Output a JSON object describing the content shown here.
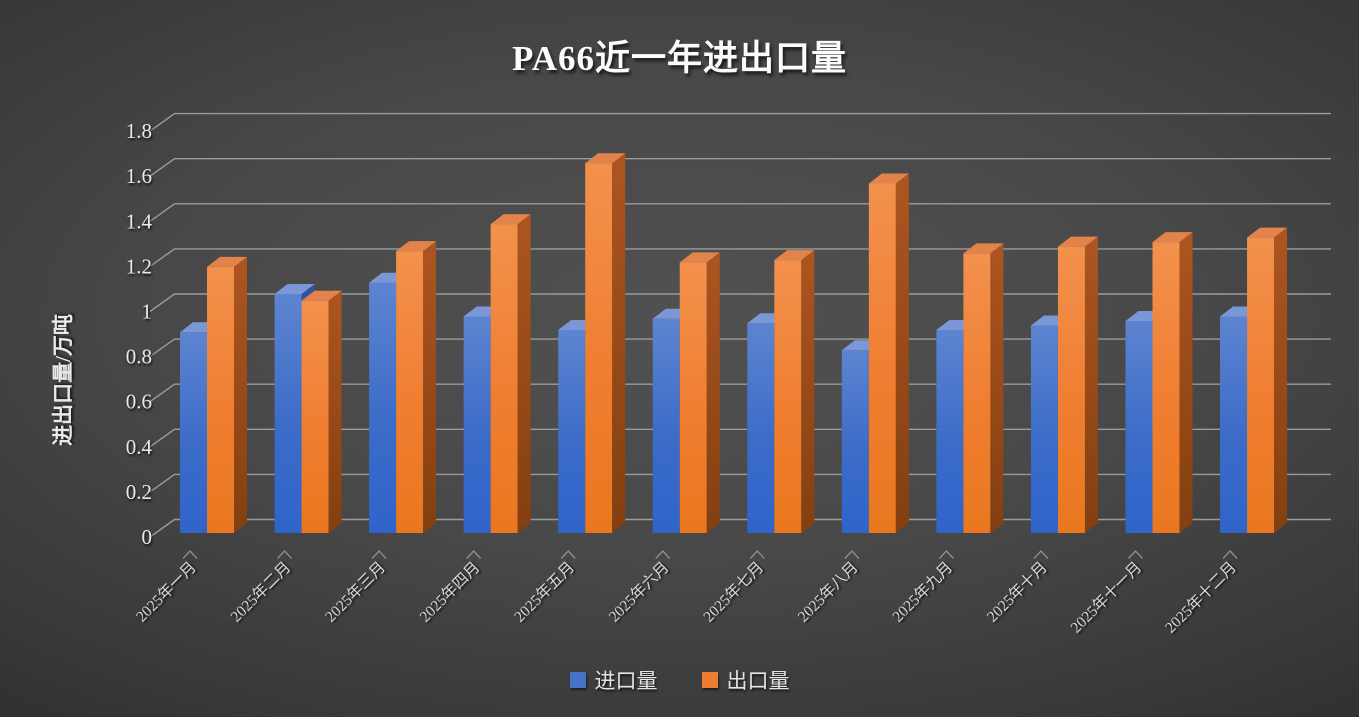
{
  "page": {
    "title": "PA66近一年进出口量"
  },
  "chart_data": {
    "type": "bar",
    "style": "3d-clustered-column-dark",
    "title": "PA66近一年进出口量",
    "xlabel": "",
    "ylabel": "进出口量/万吨",
    "categories": [
      "2025年一月",
      "2025年二月",
      "2025年三月",
      "2025年四月",
      "2025年五月",
      "2025年六月",
      "2025年七月",
      "2025年八月",
      "2025年九月",
      "2025年十月",
      "2025年十一月",
      "2025年十二月"
    ],
    "series": [
      {
        "name": "进口量",
        "color": "#4472c4",
        "values": [
          0.89,
          1.06,
          1.11,
          0.96,
          0.9,
          0.95,
          0.93,
          0.81,
          0.9,
          0.92,
          0.94,
          0.96
        ]
      },
      {
        "name": "出口量",
        "color": "#ed7d31",
        "values": [
          1.18,
          1.03,
          1.25,
          1.37,
          1.64,
          1.2,
          1.21,
          1.55,
          1.24,
          1.27,
          1.29,
          1.31
        ]
      }
    ],
    "ytick_labels": [
      "0",
      "0.2",
      "0.4",
      "0.6",
      "0.8",
      "1",
      "1.2",
      "1.4",
      "1.6",
      "1.8"
    ],
    "ytick_step": 0.2,
    "ylim": [
      0,
      1.8
    ],
    "grid": true,
    "gridline_color": "#9b9b9b",
    "legend_position": "bottom"
  }
}
